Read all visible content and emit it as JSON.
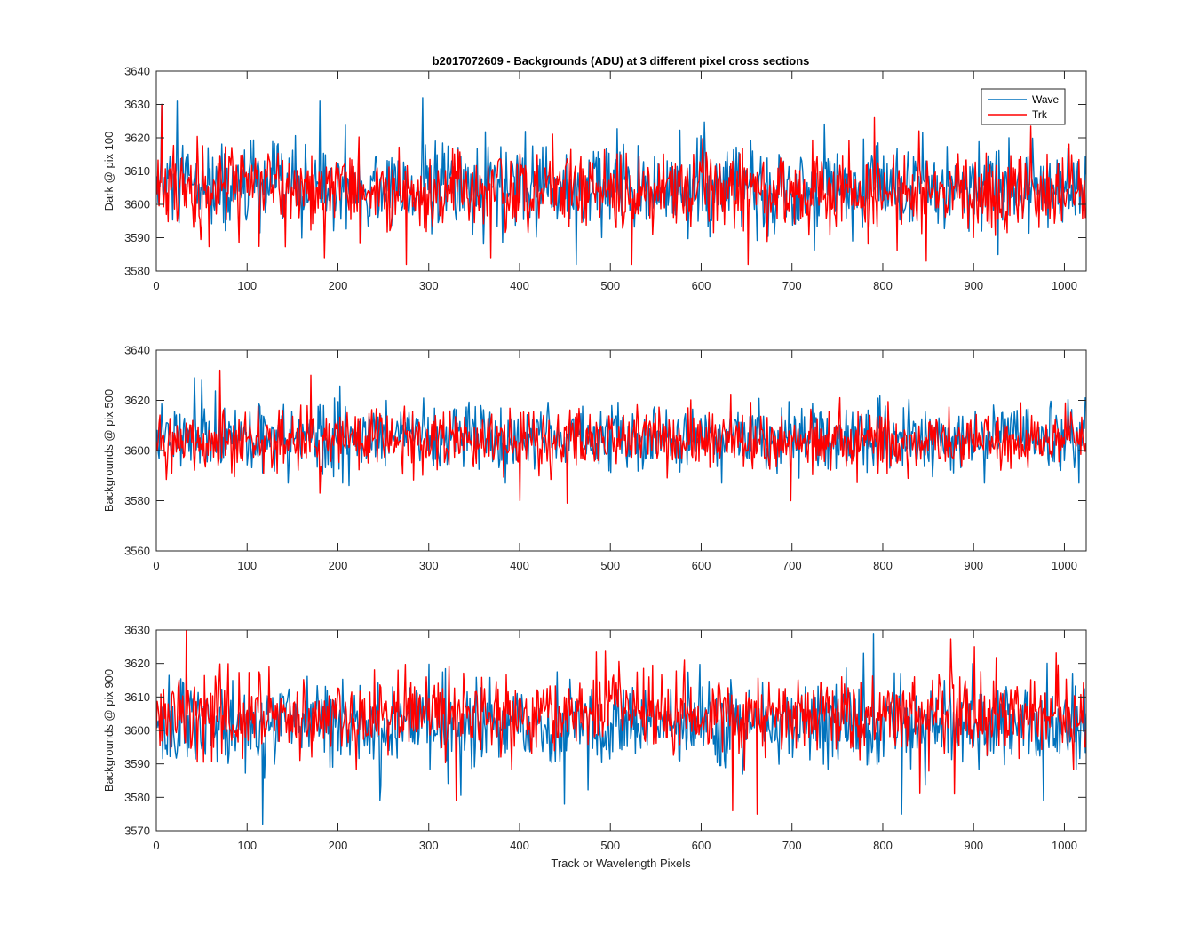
{
  "chart_data": {
    "type": "line",
    "title": "b2017072609 - Backgrounds (ADU) at 3 different pixel cross sections",
    "xlabel": "Track or Wavelength Pixels",
    "grid": false,
    "legend_placement": "top-right",
    "legend": [
      {
        "name": "Wave",
        "color": "#0072BD"
      },
      {
        "name": "Trk",
        "color": "#FF0000"
      }
    ],
    "x_range": [
      0,
      1024
    ],
    "n_points": 1024,
    "x_ticks": [
      0,
      100,
      200,
      300,
      400,
      500,
      600,
      700,
      800,
      900,
      1000
    ],
    "x_tick_labels": [
      "0",
      "100",
      "200",
      "300",
      "400",
      "500",
      "600",
      "700",
      "800",
      "900",
      "1000"
    ],
    "panels": [
      {
        "ylabel": "Dark @ pix 100",
        "ylim": [
          3580,
          3640
        ],
        "y_ticks": [
          3580,
          3590,
          3600,
          3610,
          3620,
          3630,
          3640
        ],
        "y_tick_labels": [
          "3580",
          "3590",
          "3600",
          "3610",
          "3620",
          "3630",
          "3640"
        ],
        "series": [
          {
            "name": "Wave",
            "color": "#0072BD",
            "mean": 3605,
            "noise_sd": 6.5,
            "min": 3582,
            "max": 3632,
            "extremes": [
              [
                23,
                3631
              ],
              [
                293,
                3632
              ],
              [
                180,
                3631
              ],
              [
                462,
                3582
              ],
              [
                6,
                3630
              ],
              [
                225,
                3589
              ]
            ]
          },
          {
            "name": "Trk",
            "color": "#FF0000",
            "mean": 3604,
            "noise_sd": 6.0,
            "min": 3582,
            "max": 3630,
            "extremes": [
              [
                6,
                3630
              ],
              [
                275,
                3582
              ],
              [
                523,
                3582
              ],
              [
                651,
                3582
              ],
              [
                790,
                3626
              ],
              [
                847,
                3583
              ],
              [
                185,
                3584
              ]
            ]
          }
        ]
      },
      {
        "ylabel": "Backgrounds @ pix 500",
        "ylim": [
          3560,
          3640
        ],
        "y_ticks": [
          3560,
          3580,
          3600,
          3620,
          3640
        ],
        "y_tick_labels": [
          "3560",
          "3580",
          "3600",
          "3620",
          "3640"
        ],
        "series": [
          {
            "name": "Wave",
            "color": "#0072BD",
            "mean": 3605,
            "noise_sd": 6.5,
            "min": 3585,
            "max": 3629,
            "extremes": [
              [
                42,
                3629
              ],
              [
                50,
                3628
              ],
              [
                212,
                3586
              ],
              [
                1022,
                3621
              ]
            ]
          },
          {
            "name": "Trk",
            "color": "#FF0000",
            "mean": 3604,
            "noise_sd": 6.0,
            "min": 3579,
            "max": 3632,
            "extremes": [
              [
                70,
                3632
              ],
              [
                170,
                3630
              ],
              [
                400,
                3580
              ],
              [
                452,
                3579
              ],
              [
                698,
                3580
              ],
              [
                180,
                3583
              ]
            ]
          }
        ]
      },
      {
        "ylabel": "Backgrounds @ pix 900",
        "ylim": [
          3570,
          3630
        ],
        "y_ticks": [
          3570,
          3580,
          3590,
          3600,
          3610,
          3620,
          3630
        ],
        "y_tick_labels": [
          "3570",
          "3580",
          "3590",
          "3600",
          "3610",
          "3620",
          "3630"
        ],
        "series": [
          {
            "name": "Wave",
            "color": "#0072BD",
            "mean": 3602,
            "noise_sd": 6.5,
            "min": 3572,
            "max": 3629,
            "extremes": [
              [
                117,
                3572
              ],
              [
                789,
                3629
              ],
              [
                820,
                3575
              ],
              [
                449,
                3578
              ]
            ]
          },
          {
            "name": "Trk",
            "color": "#FF0000",
            "mean": 3605,
            "noise_sd": 6.0,
            "min": 3575,
            "max": 3630,
            "extremes": [
              [
                33,
                3630
              ],
              [
                661,
                3575
              ],
              [
                634,
                3576
              ],
              [
                330,
                3579
              ],
              [
                878,
                3581
              ],
              [
                900,
                3625
              ]
            ]
          }
        ]
      }
    ]
  }
}
